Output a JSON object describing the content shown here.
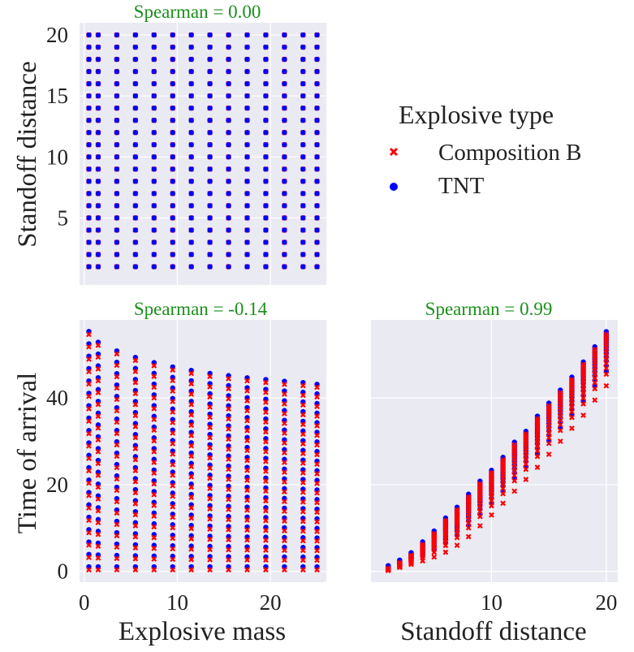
{
  "chart_data": [
    {
      "type": "scatter",
      "panel": "top-left",
      "title": "Spearman = 0.00",
      "xlabel": "",
      "ylabel": "Standoff distance",
      "xlim": [
        -0.5,
        26
      ],
      "ylim": [
        -0.5,
        21
      ],
      "yticks": [
        5,
        10,
        15,
        20
      ],
      "xticks": [
        0,
        10,
        20
      ],
      "grid": true,
      "x_grid_values": [
        0.5,
        1.5,
        3.5,
        5.5,
        7.5,
        9.5,
        11.5,
        13.5,
        15.5,
        17.5,
        19.5,
        21.5,
        23.5,
        25.0
      ],
      "y_grid_values": [
        1,
        2,
        3,
        4,
        5,
        6,
        7,
        8,
        9,
        10,
        11,
        12,
        13,
        14,
        15,
        16,
        17,
        18,
        19,
        20
      ],
      "series": [
        {
          "name": "Composition B",
          "color": "#ff0000",
          "marker": "x"
        },
        {
          "name": "TNT",
          "color": "#0000ff",
          "marker": "o"
        }
      ]
    },
    {
      "type": "scatter",
      "panel": "bottom-left",
      "title": "Spearman = -0.14",
      "xlabel": "Explosive mass",
      "ylabel": "Time of arrival",
      "xlim": [
        -0.5,
        26
      ],
      "ylim": [
        -2.5,
        58
      ],
      "xticks": [
        0,
        10,
        20
      ],
      "yticks": [
        0,
        20,
        40
      ],
      "grid": true,
      "mass_values": [
        0.5,
        1.5,
        3.5,
        5.5,
        7.5,
        9.5,
        11.5,
        13.5,
        15.5,
        17.5,
        19.5,
        21.5,
        23.5,
        25.0
      ],
      "max_time_of_arrival": [
        55,
        52.5,
        50.5,
        49,
        47.8,
        46.8,
        46,
        45.3,
        44.8,
        44.3,
        43.9,
        43.5,
        43.2,
        42.8
      ],
      "standoff_values": "1-20",
      "series": [
        {
          "name": "Composition B",
          "color": "#ff0000",
          "marker": "x"
        },
        {
          "name": "TNT",
          "color": "#0000ff",
          "marker": "o"
        }
      ]
    },
    {
      "type": "scatter",
      "panel": "bottom-right",
      "title": "Spearman = 0.99",
      "xlabel": "Standoff distance",
      "ylabel": "",
      "xlim": [
        -0.5,
        21
      ],
      "ylim": [
        -2.5,
        58
      ],
      "xticks": [
        10,
        20
      ],
      "grid": true,
      "standoff_values": [
        1,
        2,
        3,
        4,
        5,
        6,
        7,
        8,
        9,
        10,
        11,
        12,
        13,
        14,
        15,
        16,
        17,
        18,
        19,
        20
      ],
      "min_time_of_arrival": [
        0.3,
        0.9,
        1.6,
        2.4,
        3.3,
        4.4,
        6,
        8,
        10.5,
        13,
        15.7,
        18.5,
        21.2,
        24,
        27,
        30,
        33,
        36,
        39.5,
        42.8
      ],
      "max_time_of_arrival": [
        1,
        2.3,
        4,
        6.5,
        9,
        12,
        14.5,
        17.5,
        20.5,
        23,
        26,
        29.5,
        32,
        35.5,
        38.5,
        41.5,
        44.5,
        48,
        51.5,
        55
      ],
      "series": [
        {
          "name": "Composition B",
          "color": "#ff0000",
          "marker": "x"
        },
        {
          "name": "TNT",
          "color": "#0000ff",
          "marker": "o"
        }
      ]
    }
  ],
  "legend": {
    "title": "Explosive type",
    "items": [
      {
        "label": "Composition B",
        "color": "#ff0000",
        "marker": "x"
      },
      {
        "label": "TNT",
        "color": "#0000ff",
        "marker": "o"
      }
    ]
  },
  "colors": {
    "panel_background": "#eaeaf2",
    "grid": "#ffffff",
    "title": "#1a8f1a"
  }
}
